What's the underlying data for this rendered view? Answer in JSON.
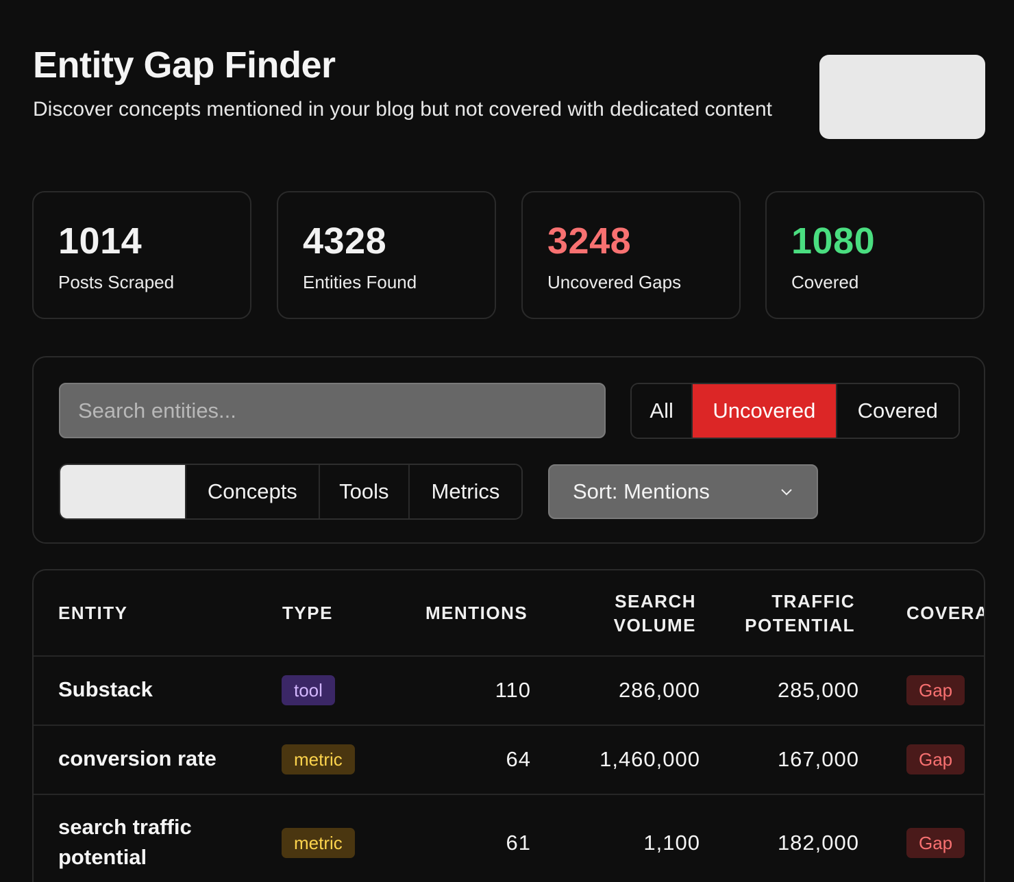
{
  "header": {
    "title": "Entity Gap Finder",
    "subtitle": "Discover concepts mentioned in your blog but not covered with dedicated content"
  },
  "stats": [
    {
      "value": "1014",
      "label": "Posts Scraped",
      "color": "#f2f2f2"
    },
    {
      "value": "4328",
      "label": "Entities Found",
      "color": "#f2f2f2"
    },
    {
      "value": "3248",
      "label": "Uncovered Gaps",
      "color": "#f87171"
    },
    {
      "value": "1080",
      "label": "Covered",
      "color": "#4ade80"
    }
  ],
  "filters": {
    "search_placeholder": "Search entities...",
    "status_options": [
      "All",
      "Uncovered",
      "Covered"
    ],
    "status_selected": "Uncovered",
    "type_options": [
      "",
      "Concepts",
      "Tools",
      "Metrics"
    ],
    "sort_label": "Sort: Mentions"
  },
  "table": {
    "headers": {
      "entity": "ENTITY",
      "type": "TYPE",
      "mentions": "MENTIONS",
      "search_volume_1": "SEARCH",
      "search_volume_2": "VOLUME",
      "traffic_1": "TRAFFIC",
      "traffic_2": "POTENTIAL",
      "coverage": "COVERA"
    },
    "rows": [
      {
        "entity": "Substack",
        "type": "tool",
        "mentions": "110",
        "search_volume": "286,000",
        "traffic_potential": "285,000",
        "coverage": "Gap"
      },
      {
        "entity": "conversion rate",
        "type": "metric",
        "mentions": "64",
        "search_volume": "1,460,000",
        "traffic_potential": "167,000",
        "coverage": "Gap"
      },
      {
        "entity": "search traffic potential",
        "type": "metric",
        "mentions": "61",
        "search_volume": "1,100",
        "traffic_potential": "182,000",
        "coverage": "Gap"
      }
    ]
  }
}
